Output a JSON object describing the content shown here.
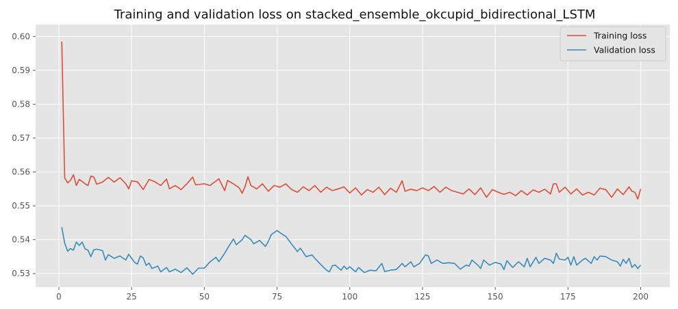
{
  "chart_data": {
    "type": "line",
    "title": "Training and validation loss on stacked_ensemble_okcupid_bidirectional_LSTM",
    "xlabel": "",
    "ylabel": "",
    "xlim": [
      -8,
      210
    ],
    "ylim": [
      0.526,
      0.6035
    ],
    "xticks": [
      0,
      25,
      50,
      75,
      100,
      125,
      150,
      175,
      200
    ],
    "xtick_labels": [
      "0",
      "25",
      "50",
      "75",
      "100",
      "125",
      "150",
      "175",
      "200"
    ],
    "yticks": [
      0.53,
      0.54,
      0.55,
      0.56,
      0.57,
      0.58,
      0.59,
      0.6
    ],
    "ytick_labels": [
      "0.53",
      "0.54",
      "0.55",
      "0.56",
      "0.57",
      "0.58",
      "0.59",
      "0.60"
    ],
    "grid": true,
    "legend_position": "top-right",
    "style": {
      "background": "#e5e5e5",
      "grid_color": "#ffffff",
      "training_color": "#e24a33",
      "validation_color": "#348abd"
    },
    "series": [
      {
        "name": "Training loss",
        "color": "#e24a33",
        "anchors": [
          [
            1,
            0.5985
          ],
          [
            2,
            0.5582
          ],
          [
            3,
            0.5568
          ],
          [
            4,
            0.5575
          ],
          [
            5,
            0.5592
          ],
          [
            6,
            0.556
          ],
          [
            7,
            0.5578
          ],
          [
            8,
            0.5572
          ],
          [
            9,
            0.5565
          ],
          [
            10,
            0.556
          ],
          [
            11,
            0.5588
          ],
          [
            12,
            0.5585
          ],
          [
            13,
            0.5564
          ],
          [
            15,
            0.557
          ],
          [
            17,
            0.5584
          ],
          [
            19,
            0.557
          ],
          [
            21,
            0.5583
          ],
          [
            23,
            0.5565
          ],
          [
            24,
            0.555
          ],
          [
            25,
            0.5574
          ],
          [
            27,
            0.5571
          ],
          [
            29,
            0.5548
          ],
          [
            31,
            0.5578
          ],
          [
            33,
            0.5571
          ],
          [
            35,
            0.556
          ],
          [
            37,
            0.5579
          ],
          [
            38,
            0.555
          ],
          [
            40,
            0.556
          ],
          [
            42,
            0.5548
          ],
          [
            44,
            0.5565
          ],
          [
            46,
            0.5585
          ],
          [
            47,
            0.5562
          ],
          [
            50,
            0.5565
          ],
          [
            52,
            0.556
          ],
          [
            55,
            0.558
          ],
          [
            57,
            0.5545
          ],
          [
            58,
            0.5575
          ],
          [
            60,
            0.5565
          ],
          [
            62,
            0.5553
          ],
          [
            63,
            0.5537
          ],
          [
            64,
            0.5557
          ],
          [
            65,
            0.5586
          ],
          [
            66,
            0.556
          ],
          [
            68,
            0.555
          ],
          [
            70,
            0.5565
          ],
          [
            72,
            0.5543
          ],
          [
            74,
            0.556
          ],
          [
            76,
            0.5555
          ],
          [
            78,
            0.5565
          ],
          [
            80,
            0.5548
          ],
          [
            82,
            0.554
          ],
          [
            84,
            0.5556
          ],
          [
            86,
            0.5545
          ],
          [
            88,
            0.556
          ],
          [
            90,
            0.554
          ],
          [
            92,
            0.5555
          ],
          [
            94,
            0.5545
          ],
          [
            96,
            0.555
          ],
          [
            98,
            0.5556
          ],
          [
            100,
            0.5538
          ],
          [
            102,
            0.5553
          ],
          [
            104,
            0.5532
          ],
          [
            106,
            0.5548
          ],
          [
            108,
            0.554
          ],
          [
            110,
            0.5555
          ],
          [
            112,
            0.5533
          ],
          [
            114,
            0.5552
          ],
          [
            116,
            0.554
          ],
          [
            118,
            0.5574
          ],
          [
            119,
            0.5543
          ],
          [
            121,
            0.5549
          ],
          [
            123,
            0.5545
          ],
          [
            125,
            0.5553
          ],
          [
            127,
            0.5545
          ],
          [
            129,
            0.5557
          ],
          [
            131,
            0.554
          ],
          [
            133,
            0.5555
          ],
          [
            135,
            0.5545
          ],
          [
            137,
            0.554
          ],
          [
            139,
            0.5535
          ],
          [
            141,
            0.555
          ],
          [
            143,
            0.5533
          ],
          [
            145,
            0.5553
          ],
          [
            147,
            0.5525
          ],
          [
            149,
            0.5548
          ],
          [
            151,
            0.554
          ],
          [
            153,
            0.5534
          ],
          [
            155,
            0.554
          ],
          [
            157,
            0.553
          ],
          [
            159,
            0.5545
          ],
          [
            161,
            0.5532
          ],
          [
            163,
            0.5547
          ],
          [
            165,
            0.554
          ],
          [
            167,
            0.5549
          ],
          [
            169,
            0.5535
          ],
          [
            170,
            0.5565
          ],
          [
            171,
            0.5565
          ],
          [
            172,
            0.554
          ],
          [
            174,
            0.5555
          ],
          [
            176,
            0.5535
          ],
          [
            178,
            0.555
          ],
          [
            180,
            0.5532
          ],
          [
            182,
            0.554
          ],
          [
            184,
            0.5532
          ],
          [
            186,
            0.5552
          ],
          [
            188,
            0.5548
          ],
          [
            190,
            0.5525
          ],
          [
            192,
            0.555
          ],
          [
            194,
            0.5533
          ],
          [
            196,
            0.5556
          ],
          [
            197,
            0.5543
          ],
          [
            198,
            0.554
          ],
          [
            199,
            0.552
          ],
          [
            200,
            0.555
          ]
        ]
      },
      {
        "name": "Validation loss",
        "color": "#348abd",
        "anchors": [
          [
            1,
            0.5437
          ],
          [
            2,
            0.539
          ],
          [
            3,
            0.5366
          ],
          [
            4,
            0.5374
          ],
          [
            5,
            0.5369
          ],
          [
            6,
            0.5393
          ],
          [
            7,
            0.5383
          ],
          [
            8,
            0.5393
          ],
          [
            9,
            0.5373
          ],
          [
            10,
            0.5369
          ],
          [
            11,
            0.535
          ],
          [
            12,
            0.537
          ],
          [
            13,
            0.5372
          ],
          [
            15,
            0.5368
          ],
          [
            16,
            0.534
          ],
          [
            17,
            0.5356
          ],
          [
            19,
            0.5345
          ],
          [
            21,
            0.5352
          ],
          [
            23,
            0.534
          ],
          [
            24,
            0.5357
          ],
          [
            26,
            0.5333
          ],
          [
            27,
            0.5328
          ],
          [
            28,
            0.5352
          ],
          [
            29,
            0.5346
          ],
          [
            30,
            0.5324
          ],
          [
            31,
            0.5331
          ],
          [
            32,
            0.5315
          ],
          [
            34,
            0.5322
          ],
          [
            35,
            0.5305
          ],
          [
            37,
            0.5318
          ],
          [
            38,
            0.5305
          ],
          [
            40,
            0.5313
          ],
          [
            42,
            0.5303
          ],
          [
            44,
            0.5317
          ],
          [
            46,
            0.5298
          ],
          [
            48,
            0.5316
          ],
          [
            50,
            0.5316
          ],
          [
            52,
            0.5335
          ],
          [
            54,
            0.5348
          ],
          [
            55,
            0.5335
          ],
          [
            57,
            0.536
          ],
          [
            58,
            0.5375
          ],
          [
            60,
            0.5402
          ],
          [
            61,
            0.5385
          ],
          [
            63,
            0.54
          ],
          [
            64,
            0.5413
          ],
          [
            66,
            0.54
          ],
          [
            67,
            0.5388
          ],
          [
            69,
            0.5398
          ],
          [
            71,
            0.538
          ],
          [
            72,
            0.5395
          ],
          [
            73,
            0.5415
          ],
          [
            75,
            0.5427
          ],
          [
            77,
            0.5415
          ],
          [
            78,
            0.541
          ],
          [
            80,
            0.5387
          ],
          [
            82,
            0.5365
          ],
          [
            83,
            0.5375
          ],
          [
            85,
            0.535
          ],
          [
            87,
            0.5355
          ],
          [
            88,
            0.5345
          ],
          [
            90,
            0.5327
          ],
          [
            92,
            0.531
          ],
          [
            93,
            0.5305
          ],
          [
            94,
            0.5323
          ],
          [
            95,
            0.5325
          ],
          [
            97,
            0.531
          ],
          [
            98,
            0.5322
          ],
          [
            99,
            0.5313
          ],
          [
            100,
            0.532
          ],
          [
            102,
            0.5305
          ],
          [
            103,
            0.5318
          ],
          [
            105,
            0.5303
          ],
          [
            107,
            0.531
          ],
          [
            109,
            0.5308
          ],
          [
            111,
            0.533
          ],
          [
            112,
            0.5306
          ],
          [
            114,
            0.531
          ],
          [
            116,
            0.5312
          ],
          [
            118,
            0.533
          ],
          [
            119,
            0.532
          ],
          [
            121,
            0.5335
          ],
          [
            122,
            0.532
          ],
          [
            124,
            0.533
          ],
          [
            126,
            0.5355
          ],
          [
            127,
            0.5352
          ],
          [
            128,
            0.533
          ],
          [
            130,
            0.534
          ],
          [
            132,
            0.533
          ],
          [
            134,
            0.5332
          ],
          [
            136,
            0.533
          ],
          [
            138,
            0.5313
          ],
          [
            140,
            0.5325
          ],
          [
            141,
            0.5322
          ],
          [
            142,
            0.534
          ],
          [
            144,
            0.5325
          ],
          [
            145,
            0.5315
          ],
          [
            146,
            0.534
          ],
          [
            148,
            0.5325
          ],
          [
            150,
            0.5333
          ],
          [
            152,
            0.5328
          ],
          [
            153,
            0.5312
          ],
          [
            154,
            0.5338
          ],
          [
            156,
            0.5318
          ],
          [
            158,
            0.5335
          ],
          [
            160,
            0.532
          ],
          [
            161,
            0.5345
          ],
          [
            162,
            0.532
          ],
          [
            164,
            0.5348
          ],
          [
            165,
            0.533
          ],
          [
            167,
            0.5345
          ],
          [
            169,
            0.534
          ],
          [
            170,
            0.533
          ],
          [
            171,
            0.536
          ],
          [
            172,
            0.5343
          ],
          [
            174,
            0.534
          ],
          [
            175,
            0.5348
          ],
          [
            176,
            0.5325
          ],
          [
            177,
            0.535
          ],
          [
            178,
            0.5325
          ],
          [
            180,
            0.534
          ],
          [
            181,
            0.5345
          ],
          [
            183,
            0.533
          ],
          [
            184,
            0.535
          ],
          [
            185,
            0.534
          ],
          [
            186,
            0.5352
          ],
          [
            188,
            0.535
          ],
          [
            190,
            0.534
          ],
          [
            192,
            0.5335
          ],
          [
            193,
            0.5322
          ],
          [
            194,
            0.5342
          ],
          [
            195,
            0.533
          ],
          [
            196,
            0.5345
          ],
          [
            197,
            0.5318
          ],
          [
            198,
            0.5327
          ],
          [
            199,
            0.5315
          ],
          [
            200,
            0.5325
          ]
        ]
      }
    ]
  }
}
